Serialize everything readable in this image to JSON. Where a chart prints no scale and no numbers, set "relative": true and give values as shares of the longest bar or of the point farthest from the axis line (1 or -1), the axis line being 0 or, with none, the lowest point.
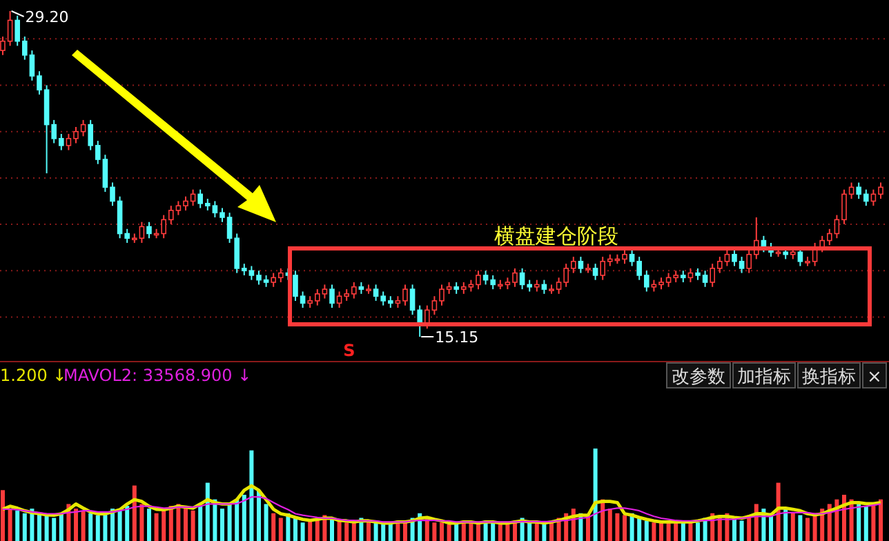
{
  "chart_data": [
    {
      "type": "candlestick",
      "categories": [
        null,
        null,
        null,
        null,
        null,
        null,
        null,
        null,
        null,
        null,
        null,
        null,
        null,
        null,
        null,
        null,
        null,
        null,
        null,
        null,
        null,
        null,
        null,
        null,
        null,
        null,
        null,
        null,
        null,
        null,
        null,
        null,
        null,
        null,
        null,
        null,
        null,
        null,
        null,
        null,
        null,
        null,
        null,
        null,
        null,
        null,
        null,
        null,
        null,
        null,
        null,
        null,
        null,
        null,
        null,
        null,
        null,
        null,
        null,
        null,
        null,
        null,
        null,
        null,
        null,
        null,
        null,
        null,
        null,
        null,
        null,
        null,
        null,
        null,
        null,
        null,
        null,
        null,
        null,
        null,
        null,
        null,
        null,
        null,
        null,
        null,
        null,
        null,
        null,
        null,
        null,
        null,
        null,
        null,
        null,
        null,
        null,
        null,
        null,
        null,
        null,
        null,
        null,
        null,
        null,
        null,
        null,
        null,
        null,
        null,
        null,
        null,
        null,
        null,
        null,
        null,
        null,
        null,
        null,
        null,
        null
      ],
      "ohlc": [
        [
          27.5,
          28.1,
          27.3,
          27.9
        ],
        [
          27.9,
          29.2,
          27.7,
          28.8
        ],
        [
          28.8,
          29.0,
          27.7,
          27.9
        ],
        [
          27.9,
          28.1,
          27.1,
          27.3
        ],
        [
          27.3,
          27.5,
          26.2,
          26.4
        ],
        [
          26.4,
          26.6,
          25.6,
          25.8
        ],
        [
          25.8,
          26.0,
          22.2,
          24.3
        ],
        [
          24.3,
          24.5,
          23.5,
          23.7
        ],
        [
          23.7,
          23.9,
          23.2,
          23.4
        ],
        [
          23.4,
          23.9,
          23.2,
          23.7
        ],
        [
          23.7,
          24.2,
          23.5,
          24.0
        ],
        [
          24.0,
          24.5,
          23.8,
          24.3
        ],
        [
          24.3,
          24.5,
          23.2,
          23.4
        ],
        [
          23.4,
          23.6,
          22.6,
          22.8
        ],
        [
          22.8,
          23.0,
          21.4,
          21.6
        ],
        [
          21.6,
          21.8,
          20.8,
          21.0
        ],
        [
          21.0,
          21.2,
          19.4,
          19.6
        ],
        [
          19.6,
          19.8,
          19.2,
          19.4
        ],
        [
          19.4,
          19.6,
          19.2,
          19.4
        ],
        [
          19.4,
          20.1,
          19.2,
          19.9
        ],
        [
          19.9,
          20.1,
          19.4,
          19.6
        ],
        [
          19.6,
          19.8,
          19.4,
          19.6
        ],
        [
          19.6,
          20.4,
          19.4,
          20.2
        ],
        [
          20.2,
          20.8,
          20.0,
          20.6
        ],
        [
          20.6,
          21.0,
          20.4,
          20.8
        ],
        [
          20.8,
          21.2,
          20.6,
          21.0
        ],
        [
          21.0,
          21.5,
          20.8,
          21.3
        ],
        [
          21.3,
          21.5,
          20.7,
          20.9
        ],
        [
          20.9,
          21.1,
          20.6,
          20.8
        ],
        [
          20.8,
          21.0,
          20.3,
          20.5
        ],
        [
          20.5,
          20.7,
          20.1,
          20.3
        ],
        [
          20.3,
          20.5,
          19.2,
          19.4
        ],
        [
          19.4,
          19.6,
          17.9,
          18.1
        ],
        [
          18.1,
          18.3,
          17.8,
          18.0
        ],
        [
          18.0,
          18.2,
          17.6,
          17.8
        ],
        [
          17.8,
          18.0,
          17.4,
          17.6
        ],
        [
          17.6,
          17.8,
          17.3,
          17.5
        ],
        [
          17.5,
          17.9,
          17.3,
          17.7
        ],
        [
          17.7,
          18.1,
          17.5,
          17.9
        ],
        [
          17.9,
          18.1,
          17.6,
          17.8
        ],
        [
          17.8,
          18.0,
          16.7,
          16.9
        ],
        [
          16.9,
          17.1,
          16.4,
          16.6
        ],
        [
          16.6,
          16.9,
          16.4,
          16.7
        ],
        [
          16.7,
          17.2,
          16.5,
          17.0
        ],
        [
          17.0,
          17.4,
          16.8,
          17.2
        ],
        [
          17.2,
          17.4,
          16.4,
          16.6
        ],
        [
          16.6,
          17.1,
          16.4,
          16.9
        ],
        [
          16.9,
          17.2,
          16.7,
          17.0
        ],
        [
          17.0,
          17.5,
          16.8,
          17.3
        ],
        [
          17.3,
          17.5,
          17.0,
          17.2
        ],
        [
          17.2,
          17.4,
          17.0,
          17.2
        ],
        [
          17.2,
          17.4,
          16.7,
          16.9
        ],
        [
          16.9,
          17.1,
          16.5,
          16.7
        ],
        [
          16.7,
          16.9,
          16.4,
          16.6
        ],
        [
          16.6,
          16.9,
          16.4,
          16.7
        ],
        [
          16.7,
          17.4,
          16.5,
          17.2
        ],
        [
          17.2,
          17.4,
          16.1,
          16.3
        ],
        [
          16.3,
          16.5,
          15.15,
          15.7
        ],
        [
          15.7,
          16.5,
          15.5,
          16.3
        ],
        [
          16.3,
          16.9,
          16.1,
          16.7
        ],
        [
          16.7,
          17.4,
          16.5,
          17.2
        ],
        [
          17.2,
          17.5,
          17.0,
          17.3
        ],
        [
          17.3,
          17.5,
          17.0,
          17.2
        ],
        [
          17.2,
          17.5,
          17.0,
          17.3
        ],
        [
          17.3,
          17.6,
          17.1,
          17.4
        ],
        [
          17.4,
          18.0,
          17.2,
          17.8
        ],
        [
          17.8,
          18.0,
          17.4,
          17.6
        ],
        [
          17.6,
          17.8,
          17.2,
          17.4
        ],
        [
          17.4,
          17.6,
          17.2,
          17.4
        ],
        [
          17.4,
          17.7,
          17.2,
          17.5
        ],
        [
          17.5,
          18.1,
          17.3,
          17.9
        ],
        [
          17.9,
          18.1,
          17.2,
          17.4
        ],
        [
          17.4,
          17.6,
          17.1,
          17.3
        ],
        [
          17.3,
          17.6,
          17.1,
          17.4
        ],
        [
          17.4,
          17.6,
          17.0,
          17.2
        ],
        [
          17.2,
          17.4,
          17.0,
          17.2
        ],
        [
          17.2,
          17.7,
          17.0,
          17.5
        ],
        [
          17.5,
          18.3,
          17.3,
          18.1
        ],
        [
          18.1,
          18.6,
          17.9,
          18.4
        ],
        [
          18.4,
          18.6,
          17.9,
          18.1
        ],
        [
          18.1,
          18.3,
          17.9,
          18.1
        ],
        [
          18.1,
          18.3,
          17.6,
          17.8
        ],
        [
          17.8,
          18.6,
          17.6,
          18.4
        ],
        [
          18.4,
          18.7,
          18.2,
          18.5
        ],
        [
          18.5,
          18.7,
          18.3,
          18.5
        ],
        [
          18.5,
          18.9,
          18.3,
          18.7
        ],
        [
          18.7,
          18.9,
          18.2,
          18.4
        ],
        [
          18.4,
          18.6,
          17.6,
          17.8
        ],
        [
          17.8,
          18.0,
          17.1,
          17.3
        ],
        [
          17.3,
          17.6,
          17.1,
          17.4
        ],
        [
          17.4,
          17.7,
          17.2,
          17.5
        ],
        [
          17.5,
          17.9,
          17.3,
          17.7
        ],
        [
          17.7,
          18.0,
          17.5,
          17.8
        ],
        [
          17.8,
          18.0,
          17.5,
          17.7
        ],
        [
          17.7,
          18.1,
          17.5,
          17.9
        ],
        [
          17.9,
          18.1,
          17.6,
          17.8
        ],
        [
          17.8,
          18.0,
          17.3,
          17.5
        ],
        [
          17.5,
          18.3,
          17.3,
          18.1
        ],
        [
          18.1,
          18.6,
          17.9,
          18.4
        ],
        [
          18.4,
          18.9,
          18.2,
          18.7
        ],
        [
          18.7,
          18.9,
          18.2,
          18.4
        ],
        [
          18.4,
          18.6,
          17.9,
          18.1
        ],
        [
          18.1,
          18.9,
          17.9,
          18.7
        ],
        [
          18.7,
          20.3,
          18.5,
          19.3
        ],
        [
          19.3,
          19.5,
          18.8,
          19.0
        ],
        [
          19.0,
          19.2,
          18.6,
          18.8
        ],
        [
          18.8,
          19.0,
          18.6,
          18.8
        ],
        [
          18.8,
          19.0,
          18.5,
          18.7
        ],
        [
          18.7,
          19.0,
          18.5,
          18.8
        ],
        [
          18.8,
          19.0,
          18.2,
          18.4
        ],
        [
          18.4,
          18.6,
          18.2,
          18.4
        ],
        [
          18.4,
          19.2,
          18.2,
          19.0
        ],
        [
          19.0,
          19.5,
          18.8,
          19.3
        ],
        [
          19.3,
          19.8,
          19.1,
          19.6
        ],
        [
          19.6,
          20.4,
          19.4,
          20.2
        ],
        [
          20.2,
          21.5,
          20.0,
          21.3
        ],
        [
          21.3,
          21.8,
          21.1,
          21.6
        ],
        [
          21.6,
          21.8,
          21.1,
          21.3
        ],
        [
          21.3,
          21.5,
          20.8,
          21.0
        ],
        [
          21.0,
          21.5,
          20.8,
          21.3
        ],
        [
          21.3,
          21.8,
          21.1,
          21.6
        ]
      ],
      "yticks": [
        {
          "value": 16,
          "label": null
        },
        {
          "value": 18,
          "label": null
        },
        {
          "value": 20,
          "label": null
        },
        {
          "value": 22,
          "label": null
        },
        {
          "value": 24,
          "label": null
        },
        {
          "value": 26,
          "label": null
        },
        {
          "value": 28,
          "label": null
        }
      ],
      "grid": "y",
      "annotations": [
        "29.20",
        "15.15",
        "横盘建仓阶段",
        "S"
      ]
    },
    {
      "type": "bar",
      "relative": true,
      "categories": [
        null,
        null,
        null,
        null,
        null,
        null,
        null,
        null,
        null,
        null,
        null,
        null,
        null,
        null,
        null,
        null,
        null,
        null,
        null,
        null,
        null,
        null,
        null,
        null,
        null,
        null,
        null,
        null,
        null,
        null,
        null,
        null,
        null,
        null,
        null,
        null,
        null,
        null,
        null,
        null,
        null,
        null,
        null,
        null,
        null,
        null,
        null,
        null,
        null,
        null,
        null,
        null,
        null,
        null,
        null,
        null,
        null,
        null,
        null,
        null,
        null,
        null,
        null,
        null,
        null,
        null,
        null,
        null,
        null,
        null,
        null,
        null,
        null,
        null,
        null,
        null,
        null,
        null,
        null,
        null,
        null,
        null,
        null,
        null,
        null,
        null,
        null,
        null,
        null,
        null,
        null,
        null,
        null,
        null,
        null,
        null,
        null,
        null,
        null,
        null,
        null,
        null,
        null,
        null,
        null,
        null,
        null,
        null,
        null,
        null,
        null,
        null,
        null,
        null,
        null,
        null,
        null,
        null,
        null,
        null,
        null
      ],
      "values": [
        0.55,
        0.35,
        0.33,
        0.3,
        0.35,
        0.3,
        0.28,
        0.25,
        0.3,
        0.4,
        0.35,
        0.33,
        0.3,
        0.28,
        0.3,
        0.35,
        0.33,
        0.38,
        0.6,
        0.4,
        0.35,
        0.3,
        0.33,
        0.38,
        0.4,
        0.35,
        0.33,
        0.38,
        0.63,
        0.45,
        0.35,
        0.4,
        0.45,
        0.5,
        0.98,
        0.55,
        0.4,
        0.3,
        0.25,
        0.3,
        0.25,
        0.2,
        0.22,
        0.25,
        0.28,
        0.25,
        0.22,
        0.2,
        0.2,
        0.25,
        0.22,
        0.2,
        0.18,
        0.2,
        0.22,
        0.2,
        0.25,
        0.3,
        0.25,
        0.2,
        0.2,
        0.18,
        0.2,
        0.22,
        0.2,
        0.2,
        0.22,
        0.2,
        0.18,
        0.2,
        0.22,
        0.25,
        0.2,
        0.2,
        0.18,
        0.2,
        0.25,
        0.3,
        0.35,
        0.3,
        0.28,
        1.0,
        0.45,
        0.35,
        0.3,
        0.28,
        0.3,
        0.25,
        0.22,
        0.2,
        0.2,
        0.22,
        0.2,
        0.2,
        0.22,
        0.2,
        0.25,
        0.3,
        0.28,
        0.3,
        0.25,
        0.22,
        0.28,
        0.4,
        0.35,
        0.3,
        0.63,
        0.35,
        0.3,
        0.28,
        0.25,
        0.3,
        0.35,
        0.4,
        0.45,
        0.5,
        0.45,
        0.4,
        0.38,
        0.4,
        0.45
      ],
      "colors": [
        "#ff3c3c",
        "#ff3c3c",
        "#54fcfc",
        "#54fcfc",
        "#54fcfc",
        "#54fcfc",
        "#54fcfc",
        "#54fcfc",
        "#54fcfc",
        "#ff3c3c",
        "#ff3c3c",
        "#ff3c3c",
        "#54fcfc",
        "#54fcfc",
        "#54fcfc",
        "#54fcfc",
        "#54fcfc",
        "#54fcfc",
        "#ff3c3c",
        "#ff3c3c",
        "#54fcfc",
        "#ff3c3c",
        "#ff3c3c",
        "#ff3c3c",
        "#ff3c3c",
        "#ff3c3c",
        "#ff3c3c",
        "#54fcfc",
        "#54fcfc",
        "#54fcfc",
        "#54fcfc",
        "#54fcfc",
        "#54fcfc",
        "#54fcfc",
        "#54fcfc",
        "#54fcfc",
        "#54fcfc",
        "#ff3c3c",
        "#ff3c3c",
        "#54fcfc",
        "#54fcfc",
        "#54fcfc",
        "#ff3c3c",
        "#ff3c3c",
        "#ff3c3c",
        "#54fcfc",
        "#ff3c3c",
        "#ff3c3c",
        "#ff3c3c",
        "#54fcfc",
        "#ff3c3c",
        "#54fcfc",
        "#54fcfc",
        "#54fcfc",
        "#ff3c3c",
        "#ff3c3c",
        "#54fcfc",
        "#54fcfc",
        "#ff3c3c",
        "#ff3c3c",
        "#ff3c3c",
        "#ff3c3c",
        "#54fcfc",
        "#ff3c3c",
        "#ff3c3c",
        "#ff3c3c",
        "#54fcfc",
        "#54fcfc",
        "#ff3c3c",
        "#ff3c3c",
        "#ff3c3c",
        "#54fcfc",
        "#54fcfc",
        "#ff3c3c",
        "#54fcfc",
        "#ff3c3c",
        "#ff3c3c",
        "#ff3c3c",
        "#ff3c3c",
        "#54fcfc",
        "#ff3c3c",
        "#54fcfc",
        "#ff3c3c",
        "#ff3c3c",
        "#ff3c3c",
        "#ff3c3c",
        "#54fcfc",
        "#54fcfc",
        "#54fcfc",
        "#ff3c3c",
        "#ff3c3c",
        "#ff3c3c",
        "#ff3c3c",
        "#54fcfc",
        "#ff3c3c",
        "#54fcfc",
        "#54fcfc",
        "#ff3c3c",
        "#ff3c3c",
        "#ff3c3c",
        "#54fcfc",
        "#54fcfc",
        "#ff3c3c",
        "#ff3c3c",
        "#54fcfc",
        "#54fcfc",
        "#ff3c3c",
        "#54fcfc",
        "#ff3c3c",
        "#54fcfc",
        "#ff3c3c",
        "#ff3c3c",
        "#ff3c3c",
        "#ff3c3c",
        "#ff3c3c",
        "#ff3c3c",
        "#ff3c3c",
        "#54fcfc",
        "#54fcfc",
        "#ff3c3c",
        "#ff3c3c"
      ],
      "annotations": [
        "1.200 ↓",
        "MAVOL2: 33568.900 ↓",
        "改参数",
        "加指标",
        "换指标",
        "×"
      ]
    },
    {
      "type": "line",
      "relative": true,
      "categories": [
        null,
        null,
        null,
        null,
        null,
        null,
        null,
        null,
        null,
        null,
        null,
        null,
        null,
        null,
        null,
        null,
        null,
        null,
        null,
        null,
        null,
        null,
        null,
        null,
        null,
        null,
        null,
        null,
        null,
        null,
        null,
        null,
        null,
        null,
        null,
        null,
        null,
        null,
        null,
        null,
        null,
        null,
        null,
        null,
        null,
        null,
        null,
        null,
        null,
        null,
        null,
        null,
        null,
        null,
        null,
        null,
        null,
        null,
        null,
        null,
        null,
        null,
        null,
        null,
        null,
        null,
        null,
        null,
        null,
        null,
        null,
        null,
        null,
        null,
        null,
        null,
        null,
        null,
        null,
        null,
        null,
        null,
        null,
        null,
        null,
        null,
        null,
        null,
        null,
        null,
        null,
        null,
        null,
        null,
        null,
        null,
        null,
        null,
        null,
        null,
        null,
        null,
        null,
        null,
        null,
        null,
        null,
        null,
        null,
        null,
        null,
        null,
        null,
        null,
        null,
        null,
        null,
        null,
        null,
        null,
        null
      ],
      "series": [
        {
          "color": "#e6e600",
          "values": [
            0.37,
            0.45,
            0.4,
            0.33,
            0.28,
            0.25,
            0.22,
            0.21,
            0.25,
            0.36,
            0.51,
            0.4,
            0.3,
            0.25,
            0.25,
            0.3,
            0.36,
            0.51,
            0.63,
            0.58,
            0.45,
            0.37,
            0.36,
            0.4,
            0.45,
            0.43,
            0.4,
            0.51,
            0.63,
            0.55,
            0.51,
            0.51,
            0.63,
            0.88,
            1,
            0.88,
            0.63,
            0.37,
            0.25,
            0.21,
            0.15,
            0.1,
            0.07,
            0.1,
            0.13,
            0.13,
            0.07,
            0.06,
            0.03,
            0.06,
            0.06,
            0.03,
            0,
            0,
            0.03,
            0.03,
            0.06,
            0.13,
            0.15,
            0.1,
            0.06,
            0,
            0,
            0.03,
            0.03,
            0,
            0.03,
            0.03,
            0,
            0,
            0.03,
            0.06,
            0.03,
            0.03,
            0,
            0.03,
            0.07,
            0.13,
            0.18,
            0.21,
            0.21,
            0.55,
            0.58,
            0.58,
            0.55,
            0.25,
            0.21,
            0.15,
            0.1,
            0.06,
            0.03,
            0.03,
            0.03,
            0.03,
            0.03,
            0.06,
            0.1,
            0.15,
            0.18,
            0.18,
            0.15,
            0.13,
            0.18,
            0.25,
            0.25,
            0.22,
            0.4,
            0.4,
            0.37,
            0.33,
            0.25,
            0.22,
            0.25,
            0.33,
            0.4,
            0.48,
            0.55,
            0.55,
            0.52,
            0.52,
            0.55
          ]
        },
        {
          "color": "#e020e0",
          "values": [
            0.37,
            0.37,
            0.36,
            0.33,
            0.3,
            0.28,
            0.25,
            0.25,
            0.25,
            0.28,
            0.3,
            0.33,
            0.33,
            0.3,
            0.3,
            0.3,
            0.33,
            0.37,
            0.43,
            0.45,
            0.45,
            0.43,
            0.4,
            0.4,
            0.43,
            0.43,
            0.43,
            0.45,
            0.51,
            0.51,
            0.51,
            0.51,
            0.52,
            0.6,
            0.7,
            0.7,
            0.66,
            0.55,
            0.45,
            0.36,
            0.25,
            0.21,
            0.18,
            0.15,
            0.13,
            0.13,
            0.1,
            0.07,
            0.07,
            0.06,
            0.06,
            0.06,
            0.03,
            0.03,
            0.03,
            0.03,
            0.06,
            0.07,
            0.07,
            0.07,
            0.06,
            0.06,
            0.03,
            0.03,
            0.03,
            0.03,
            0.03,
            0.03,
            0.03,
            0.03,
            0.03,
            0.04,
            0.04,
            0.04,
            0.04,
            0.04,
            0.06,
            0.07,
            0.1,
            0.13,
            0.15,
            0.25,
            0.33,
            0.37,
            0.4,
            0.4,
            0.37,
            0.33,
            0.25,
            0.18,
            0.13,
            0.1,
            0.07,
            0.06,
            0.06,
            0.06,
            0.07,
            0.07,
            0.1,
            0.1,
            0.1,
            0.13,
            0.15,
            0.18,
            0.18,
            0.18,
            0.25,
            0.28,
            0.28,
            0.28,
            0.28,
            0.25,
            0.25,
            0.28,
            0.33,
            0.37,
            0.4,
            0.43,
            0.45,
            0.48,
            0.51
          ]
        }
      ]
    }
  ]
}
